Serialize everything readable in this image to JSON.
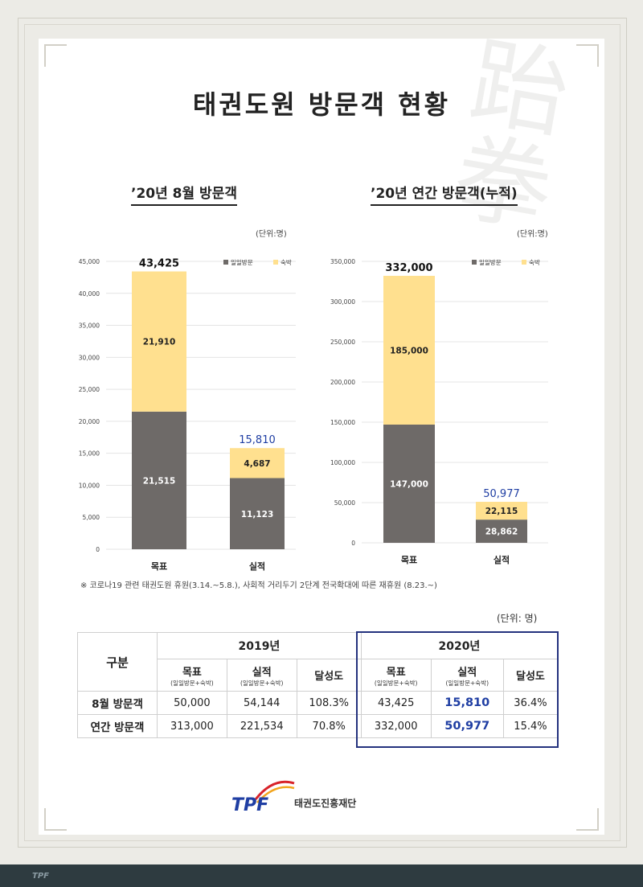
{
  "title": "태권도원 방문객 현황",
  "colors": {
    "daytrip": "#6e6a68",
    "lodging": "#ffe08f",
    "highlight": "#1f3ea3",
    "box": "#24327e"
  },
  "chart_data": [
    {
      "type": "bar",
      "stacked": true,
      "title": "’20년 8월 방문객",
      "unit": "(단위:명)",
      "categories": [
        "목표",
        "실적"
      ],
      "series": [
        {
          "name": "일일방문",
          "values": [
            21515,
            11123
          ]
        },
        {
          "name": "숙박",
          "values": [
            21910,
            4687
          ]
        }
      ],
      "series_labels": [
        [
          "21,515",
          "11,123"
        ],
        [
          "21,910",
          "4,687"
        ]
      ],
      "totals": [
        43425,
        15810
      ],
      "total_labels": [
        "43,425",
        "15,810"
      ],
      "yticks": [
        0,
        5000,
        10000,
        15000,
        20000,
        25000,
        30000,
        35000,
        40000,
        45000
      ],
      "ytick_labels": [
        "0",
        "5,000",
        "10,000",
        "15,000",
        "20,000",
        "25,000",
        "30,000",
        "35,000",
        "40,000",
        "45,000"
      ],
      "ylim": [
        0,
        45000
      ],
      "legend": "top-right",
      "grid": true
    },
    {
      "type": "bar",
      "stacked": true,
      "title": "’20년 연간 방문객(누적)",
      "unit": "(단위:명)",
      "categories": [
        "목표",
        "실적"
      ],
      "series": [
        {
          "name": "일일방문",
          "values": [
            147000,
            28862
          ]
        },
        {
          "name": "숙박",
          "values": [
            185000,
            22115
          ]
        }
      ],
      "series_labels": [
        [
          "147,000",
          "28,862"
        ],
        [
          "185,000",
          "22,115"
        ]
      ],
      "totals": [
        332000,
        50977
      ],
      "total_labels": [
        "332,000",
        "50,977"
      ],
      "yticks": [
        0,
        50000,
        100000,
        150000,
        200000,
        250000,
        300000,
        350000
      ],
      "ytick_labels": [
        "0",
        "50,000",
        "100,000",
        "150,000",
        "200,000",
        "250,000",
        "300,000",
        "350,000"
      ],
      "ylim": [
        0,
        350000
      ],
      "legend": "top-right",
      "grid": true
    }
  ],
  "note": "※ 코로나19 관련 태권도원 휴원(3.14.~5.8.), 사회적 거리두기 2단계 전국확대에 따른 재휴원 (8.23.~)",
  "table": {
    "unit": "(단위: 명)",
    "col_group_label": "구분",
    "year1": "2019년",
    "year2": "2020년",
    "sub_target": "목표",
    "sub_actual": "실적",
    "sub_note": "(일일방문+숙박)",
    "sub_rate": "달성도",
    "rows": [
      {
        "label": "8월 방문객",
        "v": [
          "50,000",
          "54,144",
          "108.3%",
          "43,425",
          "15,810",
          "36.4%"
        ]
      },
      {
        "label": "연간 방문객",
        "v": [
          "313,000",
          "221,534",
          "70.8%",
          "332,000",
          "50,977",
          "15.4%"
        ]
      }
    ]
  },
  "logo": {
    "mark": "TPF",
    "org": "태권도진흥재단"
  },
  "footer_mark": "TPF"
}
